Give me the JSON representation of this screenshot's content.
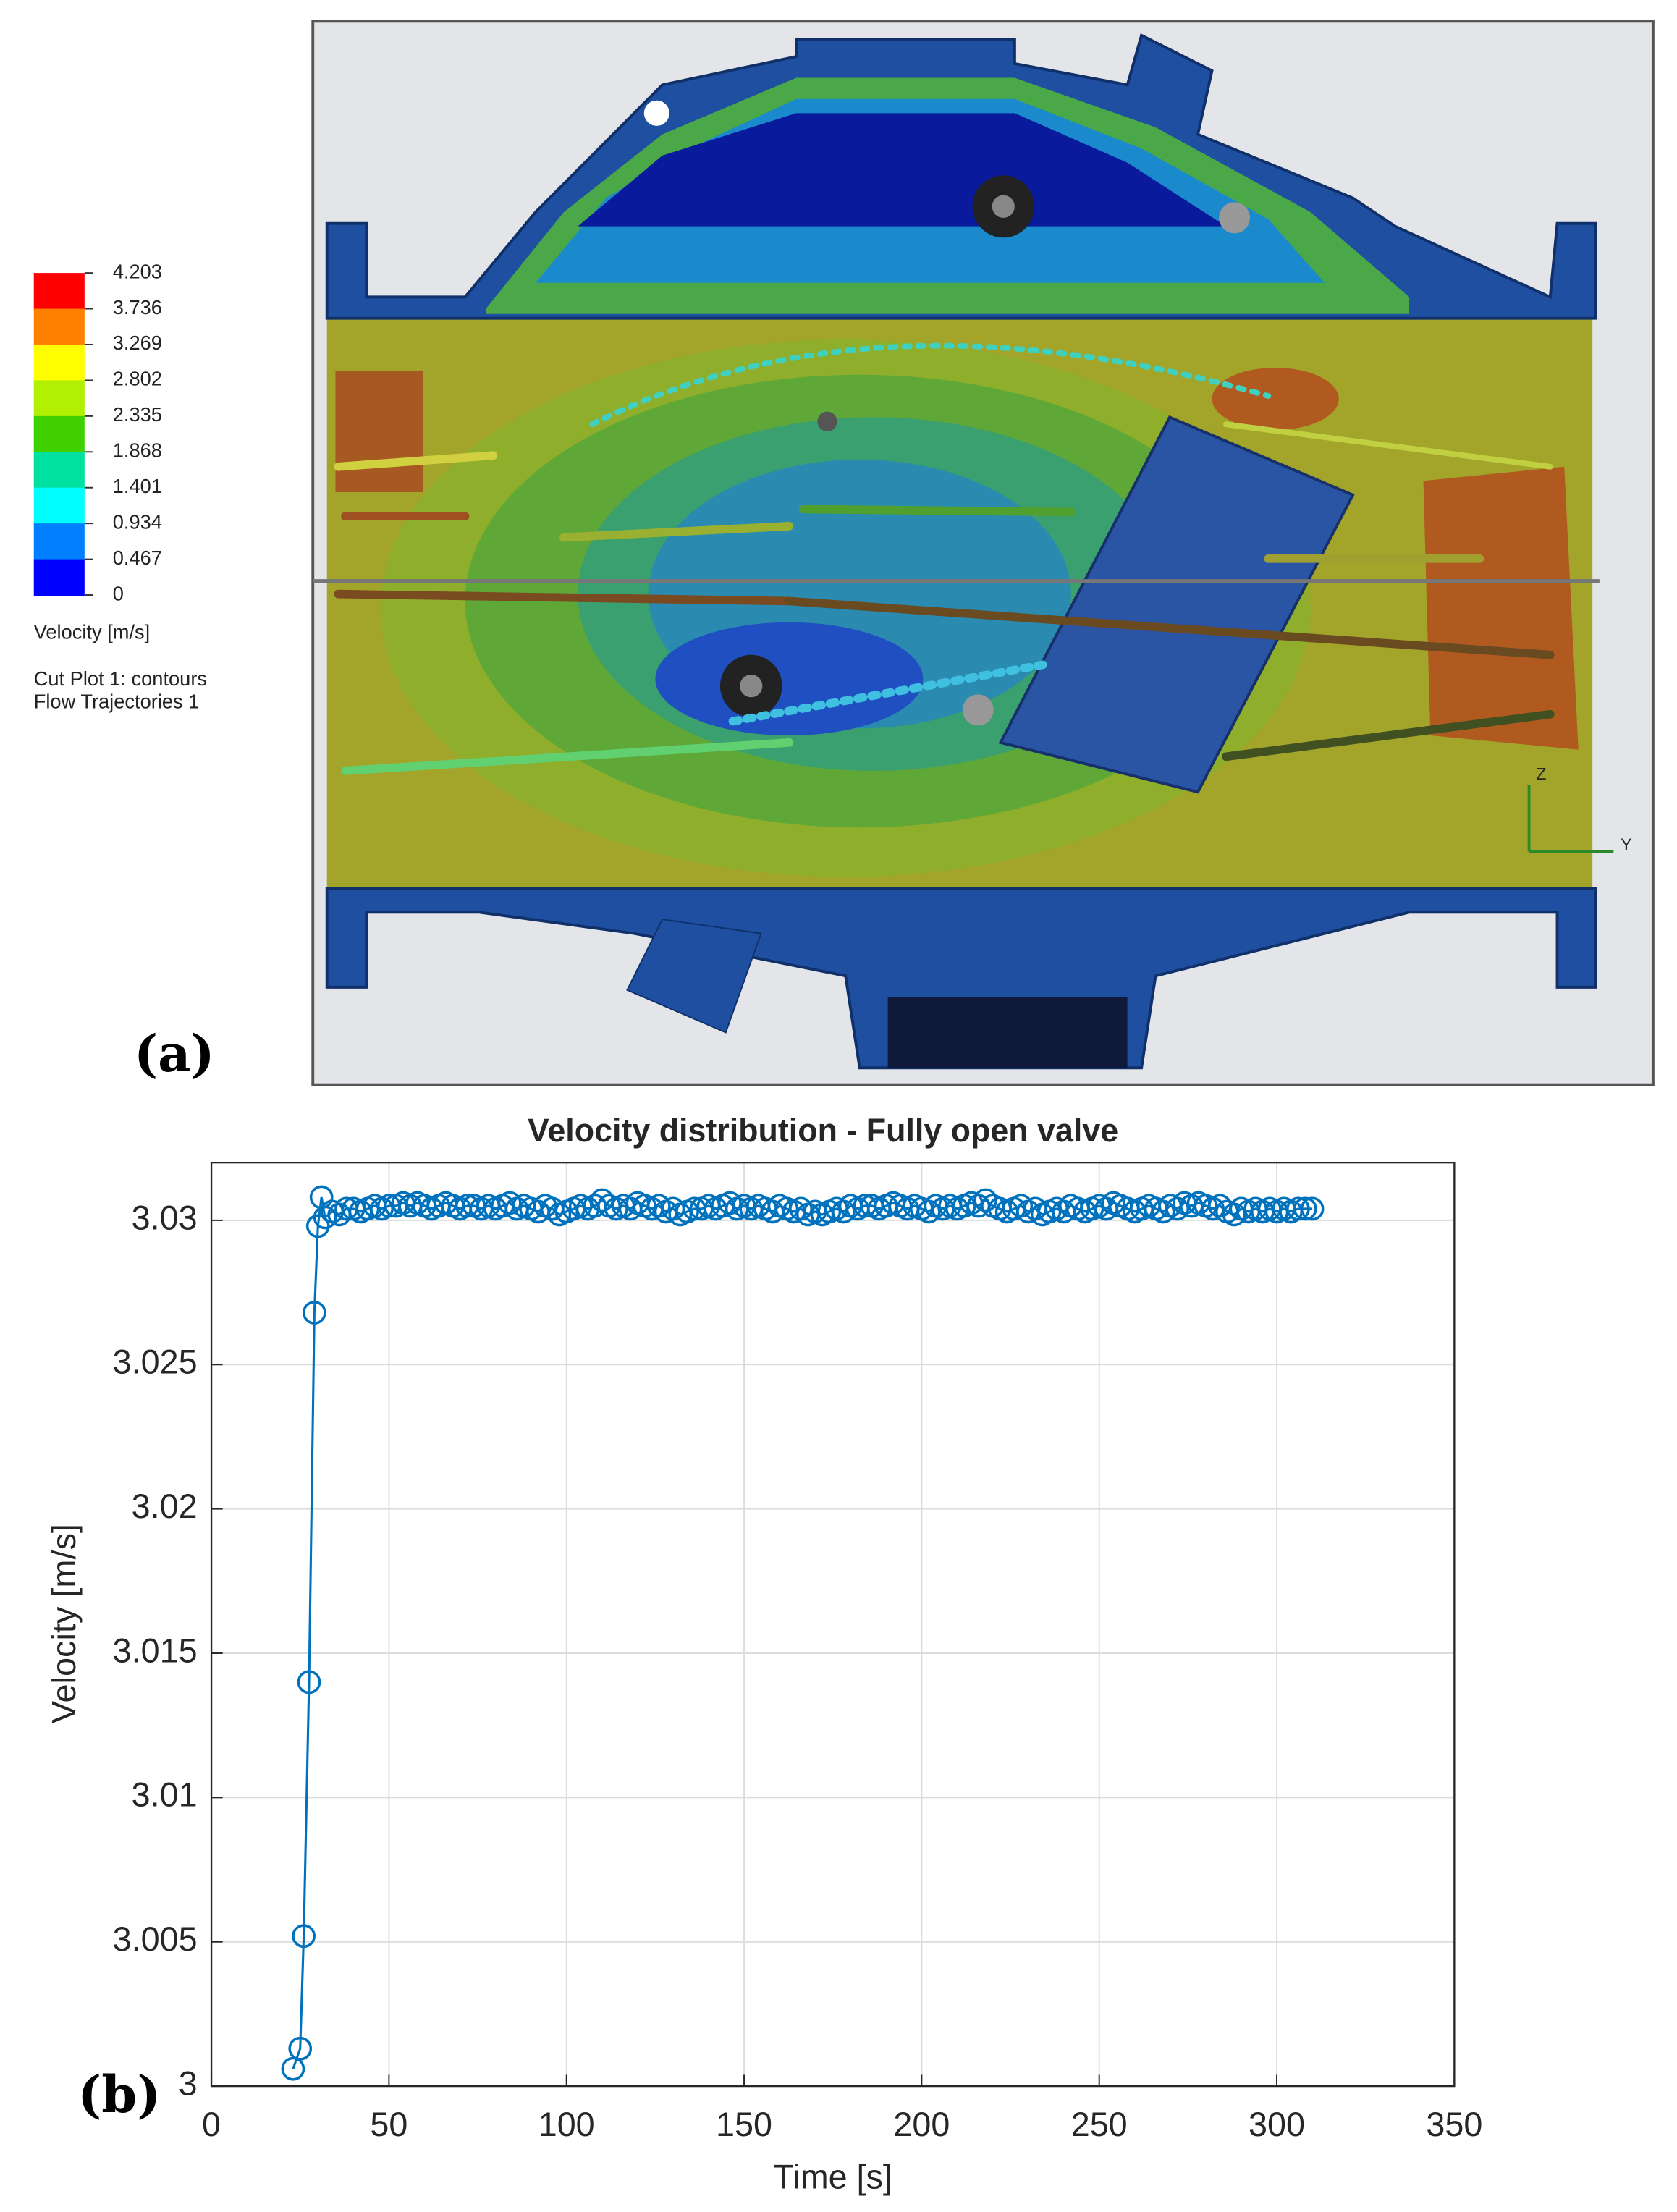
{
  "panel_labels": [
    "(a)",
    "(b)"
  ],
  "contour_legend": {
    "ticks": [
      4.203,
      3.736,
      3.269,
      2.802,
      2.335,
      1.868,
      1.401,
      0.934,
      0.467,
      0
    ],
    "colors": [
      "#ff0000",
      "#ff8000",
      "#ffff00",
      "#b0f000",
      "#40d000",
      "#00e0a0",
      "#00ffff",
      "#0080ff",
      "#0000ff"
    ],
    "title": "Velocity [m/s]",
    "notes": [
      "Cut Plot 1: contours",
      "Flow Trajectories 1"
    ]
  },
  "axis_triad": [
    "Z",
    "Y"
  ],
  "chart_data": {
    "type": "line",
    "title": "Velocity distribution - Fully open valve",
    "x_label": "Time [s]",
    "y_label": "Velocity [m/s]",
    "color": "#0072bd",
    "grid": true,
    "marker": "circle",
    "xlim": [
      0,
      350
    ],
    "xticks": [
      0,
      50,
      100,
      150,
      200,
      250,
      300,
      350
    ],
    "ylim": [
      3,
      3.032
    ],
    "yticks": [
      3,
      3.005,
      3.01,
      3.015,
      3.02,
      3.025,
      3.03
    ],
    "x": [
      23,
      25,
      26,
      27.5,
      29,
      30,
      31,
      32,
      34,
      36,
      38,
      40,
      42,
      44,
      46,
      48,
      50,
      52,
      54,
      56,
      58,
      60,
      62,
      64,
      66,
      68,
      70,
      72,
      74,
      76,
      78,
      80,
      82,
      84,
      86,
      88,
      90,
      92,
      94,
      96,
      98,
      100,
      102,
      104,
      106,
      108,
      110,
      112,
      114,
      116,
      118,
      120,
      122,
      124,
      126,
      128,
      130,
      132,
      134,
      136,
      138,
      140,
      142,
      144,
      146,
      148,
      150,
      152,
      154,
      156,
      158,
      160,
      162,
      164,
      166,
      168,
      170,
      172,
      174,
      176,
      178,
      180,
      182,
      184,
      186,
      188,
      190,
      192,
      194,
      196,
      198,
      200,
      202,
      204,
      206,
      208,
      210,
      212,
      214,
      216,
      218,
      220,
      222,
      224,
      226,
      228,
      230,
      232,
      234,
      236,
      238,
      240,
      242,
      244,
      246,
      248,
      250,
      252,
      254,
      256,
      258,
      260,
      262,
      264,
      266,
      268,
      270,
      272,
      274,
      276,
      278,
      280,
      282,
      284,
      286,
      288,
      290,
      292,
      294,
      296,
      298,
      300,
      302,
      304,
      306,
      308,
      310
    ],
    "values": [
      3.0006,
      3.0013,
      3.0052,
      3.014,
      3.0268,
      3.0298,
      3.0308,
      3.0301,
      3.0303,
      3.0302,
      3.0304,
      3.0304,
      3.0303,
      3.0304,
      3.0305,
      3.0304,
      3.0305,
      3.0305,
      3.0306,
      3.0305,
      3.0306,
      3.0305,
      3.0304,
      3.0305,
      3.0306,
      3.0305,
      3.0304,
      3.0305,
      3.0305,
      3.0304,
      3.0305,
      3.0304,
      3.0305,
      3.0306,
      3.0304,
      3.0305,
      3.0304,
      3.0303,
      3.0305,
      3.0304,
      3.0302,
      3.0303,
      3.0304,
      3.0305,
      3.0304,
      3.0305,
      3.0307,
      3.0305,
      3.0304,
      3.0305,
      3.0304,
      3.0306,
      3.0305,
      3.0304,
      3.0305,
      3.0303,
      3.0304,
      3.0302,
      3.0303,
      3.0304,
      3.0304,
      3.0305,
      3.0304,
      3.0305,
      3.0306,
      3.0304,
      3.0305,
      3.0304,
      3.0305,
      3.0304,
      3.0303,
      3.0305,
      3.0304,
      3.0303,
      3.0304,
      3.0302,
      3.0303,
      3.0302,
      3.0303,
      3.0304,
      3.0303,
      3.0305,
      3.0304,
      3.0305,
      3.0305,
      3.0304,
      3.0305,
      3.0306,
      3.0305,
      3.0304,
      3.0305,
      3.0304,
      3.0303,
      3.0305,
      3.0304,
      3.0305,
      3.0304,
      3.0305,
      3.0306,
      3.0305,
      3.0307,
      3.0305,
      3.0304,
      3.0303,
      3.0304,
      3.0305,
      3.0303,
      3.0304,
      3.0302,
      3.0303,
      3.0304,
      3.0303,
      3.0305,
      3.0304,
      3.0303,
      3.0304,
      3.0305,
      3.0304,
      3.0306,
      3.0305,
      3.0304,
      3.0303,
      3.0304,
      3.0305,
      3.0304,
      3.0303,
      3.0305,
      3.0304,
      3.0306,
      3.0305,
      3.0306,
      3.0305,
      3.0304,
      3.0305,
      3.0303,
      3.0302,
      3.0304,
      3.0303,
      3.0304,
      3.0303,
      3.0304,
      3.0303,
      3.0304,
      3.0303,
      3.0304,
      3.0304,
      3.0304
    ]
  }
}
